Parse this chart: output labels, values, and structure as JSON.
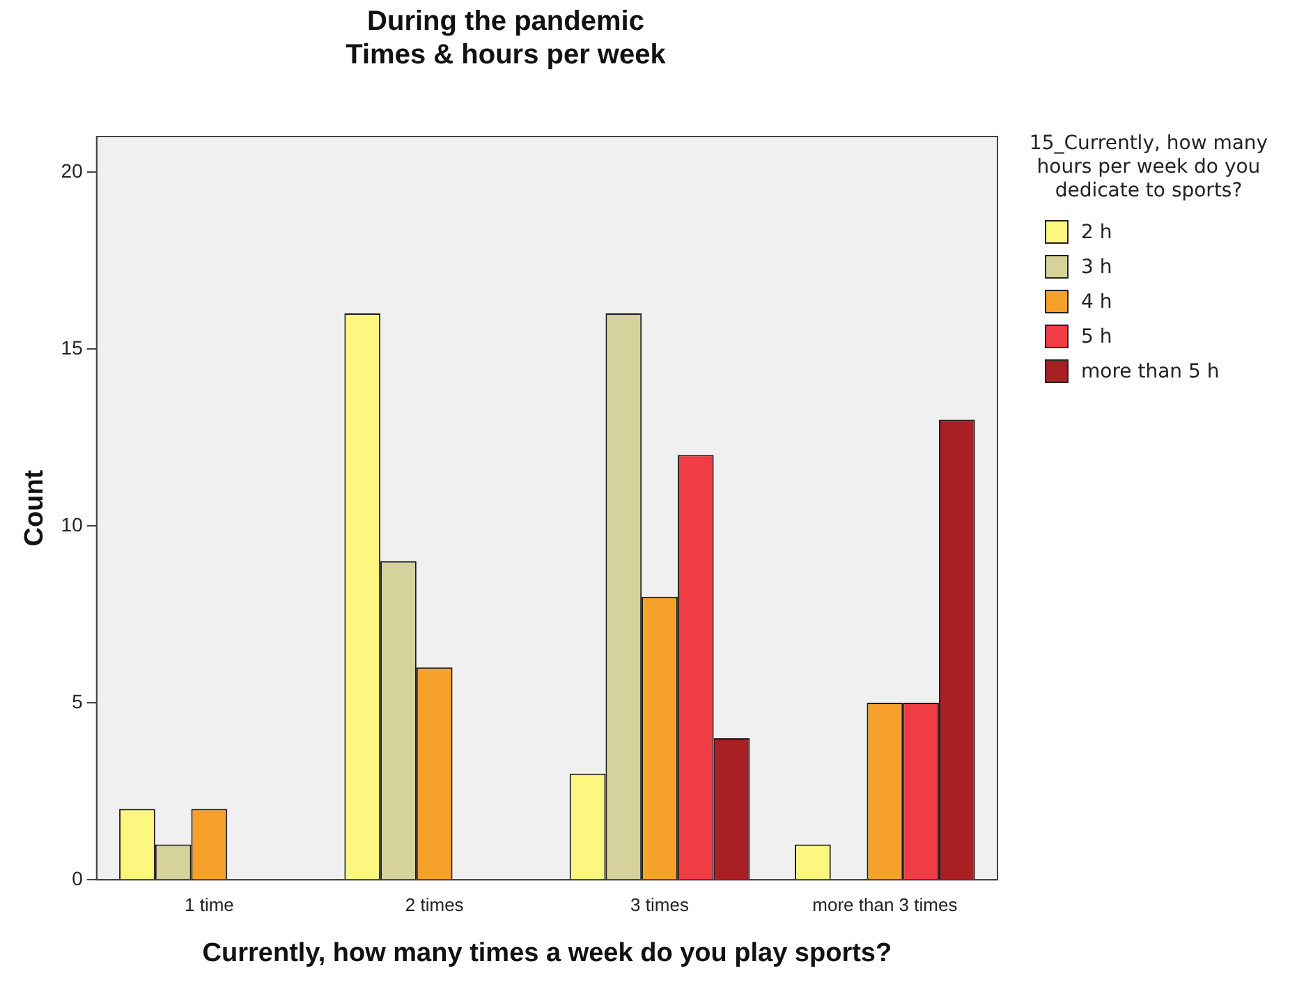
{
  "chart_data": {
    "type": "bar",
    "title": "During the pandemic\nTimes & hours per week",
    "xlabel": "Currently, how many times a week do you play sports?",
    "ylabel": "Count",
    "legend_title": "15_Currently, how many hours per week do you dedicate to sports?",
    "categories": [
      "1 time",
      "2 times",
      "3 times",
      "more than 3 times"
    ],
    "series": [
      {
        "name": "2 h",
        "color": "#fbf77f",
        "values": [
          2,
          16,
          3,
          1
        ]
      },
      {
        "name": "3 h",
        "color": "#d6d29c",
        "values": [
          1,
          9,
          16,
          0
        ]
      },
      {
        "name": "4 h",
        "color": "#f7a12d",
        "values": [
          2,
          6,
          8,
          5
        ]
      },
      {
        "name": "5 h",
        "color": "#ef3c45",
        "values": [
          0,
          0,
          12,
          5
        ]
      },
      {
        "name": "more than 5 h",
        "color": "#a81f24",
        "values": [
          0,
          0,
          4,
          13
        ]
      }
    ],
    "ylim": [
      0,
      21
    ],
    "yticks": [
      0,
      5,
      10,
      15,
      20
    ],
    "grid": false,
    "legend": "right"
  }
}
